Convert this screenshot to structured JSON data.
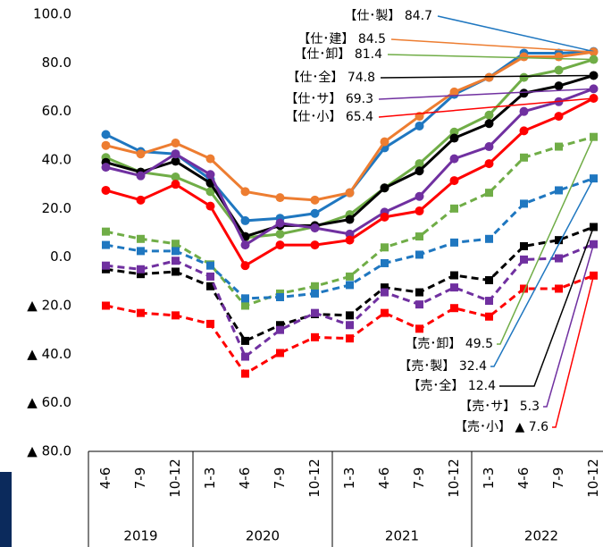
{
  "chart_data": {
    "type": "line",
    "categories": [
      "4-6",
      "7-9",
      "10-12",
      "1-3",
      "4-6",
      "7-9",
      "10-12",
      "1-3",
      "4-6",
      "7-9",
      "10-12",
      "1-3",
      "4-6",
      "7-9",
      "10-12"
    ],
    "groups": [
      "2019",
      "2020",
      "2021",
      "2022"
    ],
    "group_sizes": [
      3,
      4,
      4,
      4
    ],
    "ylim": [
      -80,
      100
    ],
    "yticks": [
      {
        "value": 100,
        "label": "100.0"
      },
      {
        "value": 80,
        "label": "80.0"
      },
      {
        "value": 60,
        "label": "60.0"
      },
      {
        "value": 40,
        "label": "40.0"
      },
      {
        "value": 20,
        "label": "20.0"
      },
      {
        "value": 0,
        "label": "0.0"
      },
      {
        "value": -20,
        "label": "▲ 20.0"
      },
      {
        "value": -40,
        "label": "▲ 40.0"
      },
      {
        "value": -60,
        "label": "▲ 60.0"
      },
      {
        "value": -80,
        "label": "▲ 80.0"
      }
    ],
    "grid": false,
    "series": [
      {
        "name": "【仕･製】 84.7",
        "color": "#1f77c0",
        "dashed": false,
        "marker": "circle",
        "values": [
          50.5,
          43.5,
          42.5,
          32,
          15,
          16,
          18,
          26.5,
          45,
          54,
          67,
          74,
          84,
          84,
          84.7
        ]
      },
      {
        "name": "【仕･建】 84.5",
        "color": "#ed7d31",
        "dashed": false,
        "marker": "circle",
        "values": [
          46,
          42.5,
          47,
          40.5,
          27,
          24.5,
          23.5,
          26.5,
          47.5,
          58,
          68,
          74,
          82.5,
          82.5,
          84.5
        ]
      },
      {
        "name": "【仕･卸】 81.4",
        "color": "#70ad47",
        "dashed": false,
        "marker": "circle",
        "values": [
          41,
          35,
          33,
          27,
          8,
          9.5,
          12.5,
          17.5,
          28.5,
          38.5,
          51.5,
          58.5,
          74,
          77,
          81.4
        ]
      },
      {
        "name": "【仕･全】 74.8",
        "color": "#000000",
        "dashed": false,
        "marker": "circle",
        "values": [
          39,
          35,
          39.5,
          30.5,
          8.5,
          13,
          13,
          15.5,
          28.5,
          35.5,
          49,
          55,
          67.5,
          70.5,
          74.8
        ]
      },
      {
        "name": "【仕･サ】 69.3",
        "color": "#7030a0",
        "dashed": false,
        "marker": "circle",
        "values": [
          37,
          33.5,
          42.5,
          34,
          5,
          14,
          12,
          9.5,
          18.5,
          25,
          40.5,
          45.5,
          60,
          64,
          69.3
        ]
      },
      {
        "name": "【仕･小】 65.4",
        "color": "#ff0000",
        "dashed": false,
        "marker": "circle",
        "values": [
          27.5,
          23.5,
          30,
          21,
          -3.5,
          5,
          5,
          7,
          16.5,
          19,
          31.5,
          38.5,
          52,
          58,
          65.4
        ]
      },
      {
        "name": "【売･卸】 49.5",
        "color": "#70ad47",
        "dashed": true,
        "marker": "square",
        "values": [
          10.5,
          7.5,
          5.5,
          -3,
          -20,
          -15,
          -12,
          -8,
          4,
          8.5,
          20,
          26.5,
          41,
          45.5,
          49.5
        ]
      },
      {
        "name": "【売･製】 32.4",
        "color": "#1f77c0",
        "dashed": true,
        "marker": "square",
        "values": [
          5,
          2.5,
          2.5,
          -3.5,
          -17,
          -16.5,
          -15,
          -11.5,
          -2.5,
          1,
          6,
          7.5,
          22,
          27.5,
          32.4
        ]
      },
      {
        "name": "【売･全】 12.4",
        "color": "#000000",
        "dashed": true,
        "marker": "square",
        "values": [
          -5,
          -7,
          -6,
          -12,
          -34.5,
          -28,
          -23.5,
          -24,
          -12.5,
          -14.5,
          -7.5,
          -9.5,
          4.5,
          7,
          12.4
        ]
      },
      {
        "name": "【売･サ】 5.3",
        "color": "#7030a0",
        "dashed": true,
        "marker": "square",
        "values": [
          -3.5,
          -5,
          -1.5,
          -8,
          -41,
          -30,
          -23,
          -28,
          -14.5,
          -19.5,
          -12.5,
          -18,
          -1,
          -0.5,
          5.3
        ]
      },
      {
        "name": "【売･小】 ▲ 7.6",
        "color": "#ff0000",
        "dashed": true,
        "marker": "square",
        "values": [
          -20,
          -23,
          -24,
          -27.5,
          -48,
          -39.5,
          -33,
          -33.5,
          -23,
          -29.5,
          -21,
          -24.5,
          -13,
          -13,
          -7.6
        ]
      }
    ]
  }
}
